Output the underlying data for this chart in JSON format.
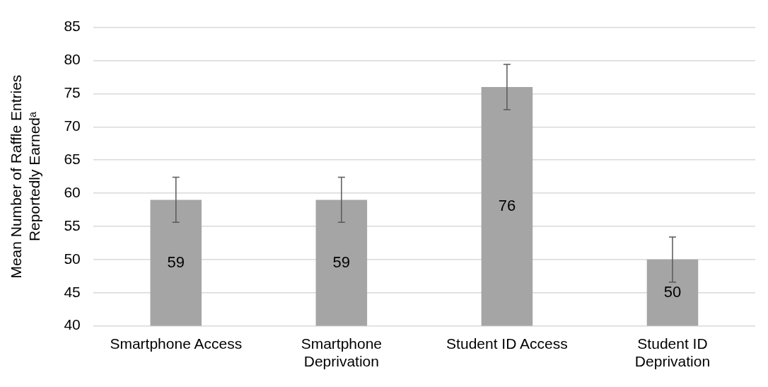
{
  "chart_data": {
    "type": "bar",
    "ylabel": "Mean Number of Raffle Entries\nReportedly Earnedᵃ",
    "categories": [
      "Smartphone Access",
      "Smartphone Deprivation",
      "Student ID Access",
      "Student ID Deprivation"
    ],
    "values": [
      59,
      59,
      76,
      50
    ],
    "color": "#a5a5a5",
    "errors": [
      3.4,
      3.4,
      3.4,
      3.4
    ],
    "ylim": [
      40,
      85
    ],
    "yticks": [
      40,
      45,
      50,
      55,
      60,
      65,
      70,
      75,
      80,
      85
    ],
    "grid": "y",
    "data_labels": true
  }
}
